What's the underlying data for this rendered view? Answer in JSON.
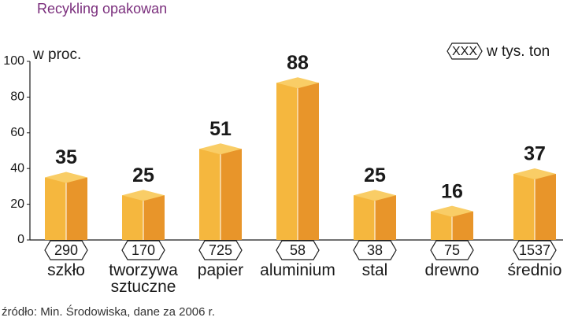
{
  "chart_data": {
    "type": "bar",
    "title": "Recykling opakowan",
    "y_label": "w proc.",
    "categories": [
      "szkło",
      "tworzywa sztuczne",
      "papier",
      "aluminium",
      "stal",
      "drewno",
      "średnio"
    ],
    "values": [
      35,
      25,
      51,
      88,
      25,
      16,
      37
    ],
    "tonnes": {
      "name": "w tys. ton",
      "legend_marker": "XXX",
      "values": [
        290,
        170,
        725,
        58,
        38,
        75,
        1537
      ]
    },
    "colors": {
      "left": "#f5b73e",
      "right": "#e8952a",
      "top": "#f9cd66"
    },
    "ylim": [
      0,
      100
    ],
    "yticks": [
      0,
      20,
      40,
      60,
      80,
      100
    ],
    "grid": false,
    "source": "źródło: Min. Środowiska, dane za 2006 r."
  }
}
